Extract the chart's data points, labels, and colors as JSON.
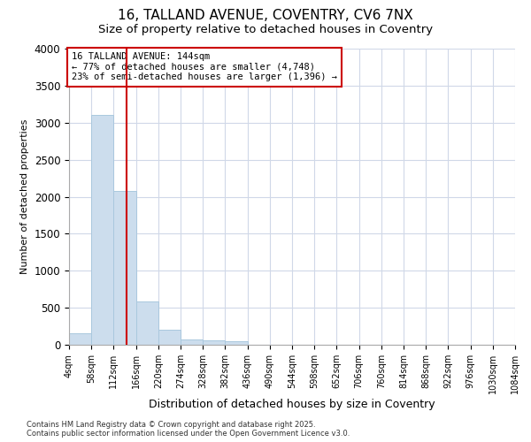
{
  "title_line1": "16, TALLAND AVENUE, COVENTRY, CV6 7NX",
  "title_line2": "Size of property relative to detached houses in Coventry",
  "xlabel": "Distribution of detached houses by size in Coventry",
  "ylabel": "Number of detached properties",
  "bar_color": "#ccdded",
  "bar_edge_color": "#aac8de",
  "bins": [
    4,
    58,
    112,
    166,
    220,
    274,
    328,
    382,
    436,
    490,
    544,
    598,
    652,
    706,
    760,
    814,
    868,
    922,
    976,
    1030,
    1084
  ],
  "values": [
    150,
    3100,
    2080,
    580,
    200,
    70,
    60,
    45,
    0,
    0,
    0,
    0,
    0,
    0,
    0,
    0,
    0,
    0,
    0,
    0
  ],
  "property_size": 144,
  "property_line_color": "#cc0000",
  "annotation_text": "16 TALLAND AVENUE: 144sqm\n← 77% of detached houses are smaller (4,748)\n23% of semi-detached houses are larger (1,396) →",
  "annotation_box_color": "#ffffff",
  "annotation_box_edge": "#cc0000",
  "ylim": [
    0,
    4000
  ],
  "yticks": [
    0,
    500,
    1000,
    1500,
    2000,
    2500,
    3000,
    3500,
    4000
  ],
  "footer_line1": "Contains HM Land Registry data © Crown copyright and database right 2025.",
  "footer_line2": "Contains public sector information licensed under the Open Government Licence v3.0.",
  "background_color": "#ffffff",
  "plot_background": "#ffffff",
  "grid_color": "#d0d8e8"
}
